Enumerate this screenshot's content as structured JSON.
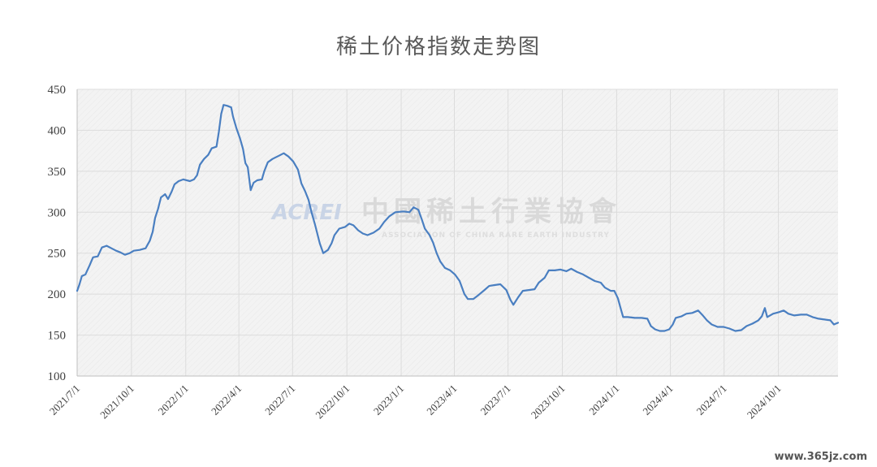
{
  "chart_data": {
    "type": "line",
    "title": "稀土价格指数走势图",
    "xlabel": "",
    "ylabel": "",
    "ylim": [
      100,
      450
    ],
    "yticks": [
      100,
      150,
      200,
      250,
      300,
      350,
      400,
      450
    ],
    "xlim": [
      "2021-07-01",
      "2025-01-10"
    ],
    "xticks": [
      "2021/7/1",
      "2021/10/1",
      "2022/1/1",
      "2022/4/1",
      "2022/7/1",
      "2022/10/1",
      "2023/1/1",
      "2023/4/1",
      "2023/7/1",
      "2023/10/1",
      "2024/1/1",
      "2024/4/1",
      "2024/7/1",
      "2024/10/1"
    ],
    "grid": true,
    "legend": "none",
    "series": [
      {
        "color": "#4a7fc1",
        "points": [
          [
            "2021-07-01",
            204
          ],
          [
            "2021-07-05",
            212
          ],
          [
            "2021-07-09",
            222
          ],
          [
            "2021-07-15",
            224
          ],
          [
            "2021-07-22",
            235
          ],
          [
            "2021-07-28",
            245
          ],
          [
            "2021-08-05",
            246
          ],
          [
            "2021-08-12",
            257
          ],
          [
            "2021-08-20",
            259
          ],
          [
            "2021-08-28",
            256
          ],
          [
            "2021-09-05",
            253
          ],
          [
            "2021-09-12",
            251
          ],
          [
            "2021-09-20",
            248
          ],
          [
            "2021-09-28",
            250
          ],
          [
            "2021-10-05",
            253
          ],
          [
            "2021-10-15",
            254
          ],
          [
            "2021-10-25",
            256
          ],
          [
            "2021-11-01",
            265
          ],
          [
            "2021-11-06",
            276
          ],
          [
            "2021-11-10",
            293
          ],
          [
            "2021-11-15",
            304
          ],
          [
            "2021-11-20",
            318
          ],
          [
            "2021-11-27",
            322
          ],
          [
            "2021-12-02",
            316
          ],
          [
            "2021-12-08",
            325
          ],
          [
            "2021-12-13",
            334
          ],
          [
            "2021-12-20",
            338
          ],
          [
            "2021-12-28",
            340
          ],
          [
            "2022-01-08",
            338
          ],
          [
            "2022-01-15",
            340
          ],
          [
            "2022-01-20",
            345
          ],
          [
            "2022-01-25",
            358
          ],
          [
            "2022-02-01",
            365
          ],
          [
            "2022-02-08",
            370
          ],
          [
            "2022-02-14",
            378
          ],
          [
            "2022-02-22",
            380
          ],
          [
            "2022-02-26",
            398
          ],
          [
            "2022-03-02",
            420
          ],
          [
            "2022-03-06",
            431
          ],
          [
            "2022-03-12",
            430
          ],
          [
            "2022-03-19",
            428
          ],
          [
            "2022-03-22",
            417
          ],
          [
            "2022-03-28",
            402
          ],
          [
            "2022-04-03",
            390
          ],
          [
            "2022-04-08",
            377
          ],
          [
            "2022-04-12",
            360
          ],
          [
            "2022-04-16",
            355
          ],
          [
            "2022-04-21",
            327
          ],
          [
            "2022-04-26",
            336
          ],
          [
            "2022-05-02",
            339
          ],
          [
            "2022-05-10",
            340
          ],
          [
            "2022-05-14",
            350
          ],
          [
            "2022-05-20",
            361
          ],
          [
            "2022-05-28",
            365
          ],
          [
            "2022-06-08",
            369
          ],
          [
            "2022-06-16",
            372
          ],
          [
            "2022-06-24",
            368
          ],
          [
            "2022-07-02",
            362
          ],
          [
            "2022-07-10",
            352
          ],
          [
            "2022-07-16",
            335
          ],
          [
            "2022-07-22",
            326
          ],
          [
            "2022-07-28",
            315
          ],
          [
            "2022-08-02",
            300
          ],
          [
            "2022-08-08",
            285
          ],
          [
            "2022-08-16",
            262
          ],
          [
            "2022-08-22",
            250
          ],
          [
            "2022-08-30",
            254
          ],
          [
            "2022-09-05",
            262
          ],
          [
            "2022-09-10",
            272
          ],
          [
            "2022-09-18",
            280
          ],
          [
            "2022-09-28",
            282
          ],
          [
            "2022-10-05",
            286
          ],
          [
            "2022-10-12",
            284
          ],
          [
            "2022-10-20",
            278
          ],
          [
            "2022-10-28",
            274
          ],
          [
            "2022-11-05",
            272
          ],
          [
            "2022-11-15",
            275
          ],
          [
            "2022-11-25",
            280
          ],
          [
            "2022-12-03",
            288
          ],
          [
            "2022-12-12",
            295
          ],
          [
            "2022-12-22",
            300
          ],
          [
            "2023-01-05",
            301
          ],
          [
            "2023-01-15",
            300
          ],
          [
            "2023-01-22",
            306
          ],
          [
            "2023-01-30",
            303
          ],
          [
            "2023-02-05",
            291
          ],
          [
            "2023-02-10",
            280
          ],
          [
            "2023-02-18",
            272
          ],
          [
            "2023-02-24",
            263
          ],
          [
            "2023-03-02",
            250
          ],
          [
            "2023-03-08",
            240
          ],
          [
            "2023-03-16",
            232
          ],
          [
            "2023-03-25",
            229
          ],
          [
            "2023-04-02",
            224
          ],
          [
            "2023-04-10",
            216
          ],
          [
            "2023-04-18",
            200
          ],
          [
            "2023-04-24",
            194
          ],
          [
            "2023-05-03",
            194
          ],
          [
            "2023-05-12",
            199
          ],
          [
            "2023-05-22",
            205
          ],
          [
            "2023-05-30",
            210
          ],
          [
            "2023-06-08",
            211
          ],
          [
            "2023-06-18",
            212
          ],
          [
            "2023-06-28",
            205
          ],
          [
            "2023-07-05",
            193
          ],
          [
            "2023-07-10",
            187
          ],
          [
            "2023-07-18",
            196
          ],
          [
            "2023-07-26",
            204
          ],
          [
            "2023-08-05",
            205
          ],
          [
            "2023-08-15",
            206
          ],
          [
            "2023-08-22",
            214
          ],
          [
            "2023-09-01",
            220
          ],
          [
            "2023-09-08",
            229
          ],
          [
            "2023-09-18",
            229
          ],
          [
            "2023-09-28",
            230
          ],
          [
            "2023-10-08",
            228
          ],
          [
            "2023-10-16",
            231
          ],
          [
            "2023-10-26",
            227
          ],
          [
            "2023-11-05",
            224
          ],
          [
            "2023-11-15",
            220
          ],
          [
            "2023-11-25",
            216
          ],
          [
            "2023-12-05",
            214
          ],
          [
            "2023-12-12",
            208
          ],
          [
            "2023-12-22",
            204
          ],
          [
            "2023-12-28",
            204
          ],
          [
            "2024-01-03",
            195
          ],
          [
            "2024-01-08",
            182
          ],
          [
            "2024-01-12",
            172
          ],
          [
            "2024-01-20",
            172
          ],
          [
            "2024-02-01",
            171
          ],
          [
            "2024-02-12",
            171
          ],
          [
            "2024-02-22",
            170
          ],
          [
            "2024-02-28",
            161
          ],
          [
            "2024-03-06",
            157
          ],
          [
            "2024-03-14",
            155
          ],
          [
            "2024-03-22",
            155
          ],
          [
            "2024-03-30",
            157
          ],
          [
            "2024-04-05",
            163
          ],
          [
            "2024-04-10",
            171
          ],
          [
            "2024-04-20",
            173
          ],
          [
            "2024-04-28",
            176
          ],
          [
            "2024-05-08",
            177
          ],
          [
            "2024-05-18",
            180
          ],
          [
            "2024-05-26",
            174
          ],
          [
            "2024-06-02",
            168
          ],
          [
            "2024-06-10",
            163
          ],
          [
            "2024-06-20",
            160
          ],
          [
            "2024-06-30",
            160
          ],
          [
            "2024-07-10",
            158
          ],
          [
            "2024-07-20",
            155
          ],
          [
            "2024-07-30",
            156
          ],
          [
            "2024-08-08",
            161
          ],
          [
            "2024-08-18",
            164
          ],
          [
            "2024-08-28",
            168
          ],
          [
            "2024-09-03",
            173
          ],
          [
            "2024-09-08",
            183
          ],
          [
            "2024-09-12",
            172
          ],
          [
            "2024-09-22",
            176
          ],
          [
            "2024-10-02",
            178
          ],
          [
            "2024-10-10",
            180
          ],
          [
            "2024-10-18",
            176
          ],
          [
            "2024-10-28",
            174
          ],
          [
            "2024-11-08",
            175
          ],
          [
            "2024-11-18",
            175
          ],
          [
            "2024-11-28",
            172
          ],
          [
            "2024-12-08",
            170
          ],
          [
            "2024-12-18",
            169
          ],
          [
            "2024-12-28",
            168
          ],
          [
            "2025-01-03",
            163
          ],
          [
            "2025-01-10",
            165
          ]
        ]
      }
    ]
  },
  "watermark": {
    "logo": "ACREI",
    "name_cn": "中國稀土行業協會",
    "name_en": "ASSOCIATION OF CHINA RARE EARTH INDUSTRY"
  },
  "source_site": "www.365jz.com",
  "colors": {
    "line": "#4a7fc1",
    "plot_bg": "#f2f2f2",
    "grid": "#dcdcdc"
  }
}
